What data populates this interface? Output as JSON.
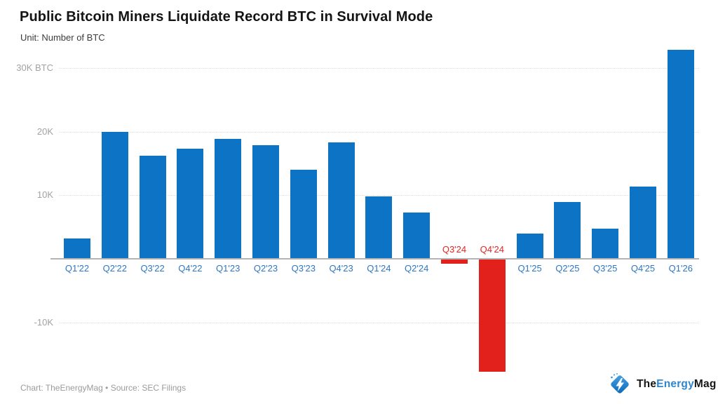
{
  "title": "Public Bitcoin Miners Liquidate Record BTC in Survival Mode",
  "subtitle": "Unit: Number of BTC",
  "footer": {
    "credit": "Chart: TheEnergyMag • Source: SEC Filings"
  },
  "logo": {
    "part1": "The",
    "part2": "Energy",
    "part3": "Mag",
    "icon": "lightning-bolt-diamond-icon"
  },
  "chart_data": {
    "type": "bar",
    "title": "Public Bitcoin Miners Liquidate Record BTC in Survival Mode",
    "unit_label": "Unit: Number of BTC",
    "categories": [
      "Q1'22",
      "Q2'22",
      "Q3'22",
      "Q4'22",
      "Q1'23",
      "Q2'23",
      "Q3'23",
      "Q4'23",
      "Q1'24",
      "Q2'24",
      "Q3'24",
      "Q4'24",
      "Q1'25",
      "Q2'25",
      "Q3'25",
      "Q4'25",
      "Q1'26"
    ],
    "values": [
      3100,
      19900,
      16100,
      17200,
      18700,
      17800,
      13900,
      18200,
      9700,
      7200,
      -700,
      -17700,
      3900,
      8800,
      4600,
      11200,
      32800
    ],
    "y_ticks": [
      {
        "value": 30000,
        "label": "30K BTC"
      },
      {
        "value": 20000,
        "label": "20K"
      },
      {
        "value": 10000,
        "label": "10K"
      },
      {
        "value": -10000,
        "label": "-10K"
      }
    ],
    "ylim": [
      -18000,
      34000
    ],
    "grid": true,
    "legend_position": "none",
    "xlabel": "",
    "ylabel": "Number of BTC",
    "colors": {
      "positive_bar": "#0d73c4",
      "negative_bar": "#e2211c",
      "positive_tick_label": "#2d77c4",
      "negative_tick_label": "#e02724",
      "axis_line": "#b4b4b4",
      "gridline": "#dcdcdc",
      "y_tick_label": "#a2a2a2"
    }
  }
}
